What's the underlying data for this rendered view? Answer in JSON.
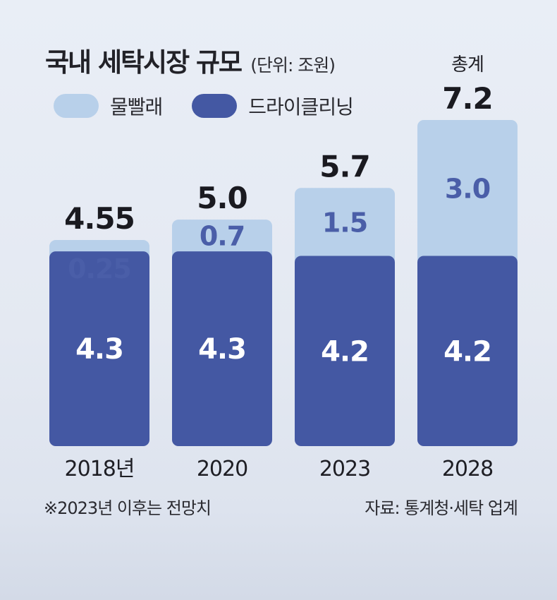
{
  "chart_data": {
    "type": "bar",
    "stacked": true,
    "title": "국내 세탁시장 규모",
    "unit": "(단위: 조원)",
    "categories": [
      "2018년",
      "2020",
      "2023",
      "2028"
    ],
    "series": [
      {
        "name": "드라이클리닝",
        "values": [
          4.3,
          4.3,
          4.2,
          4.2
        ],
        "labels": [
          "4.3",
          "4.3",
          "4.2",
          "4.2"
        ],
        "color": "#4458a3",
        "label_color": "#ffffff"
      },
      {
        "name": "물빨래",
        "values": [
          0.25,
          0.7,
          1.5,
          3.0
        ],
        "labels": [
          "0.25",
          "0.7",
          "1.5",
          "3.0"
        ],
        "color": "#b8d0ea",
        "label_color": "#4a5ea8"
      }
    ],
    "totals": [
      4.55,
      5.0,
      5.7,
      7.2
    ],
    "total_labels": [
      "4.55",
      "5.0",
      "5.7",
      "7.2"
    ],
    "total_caption": "총계",
    "ylim": [
      0,
      7.2
    ],
    "grid": false,
    "legend_position": "top-left"
  },
  "footnote": "※2023년 이후는 전망치",
  "source": "자료: 통계청·세탁 업계",
  "colors": {
    "text": "#1e1e24",
    "dark_bar": "#4458a3",
    "light_bar": "#b8d0ea"
  }
}
